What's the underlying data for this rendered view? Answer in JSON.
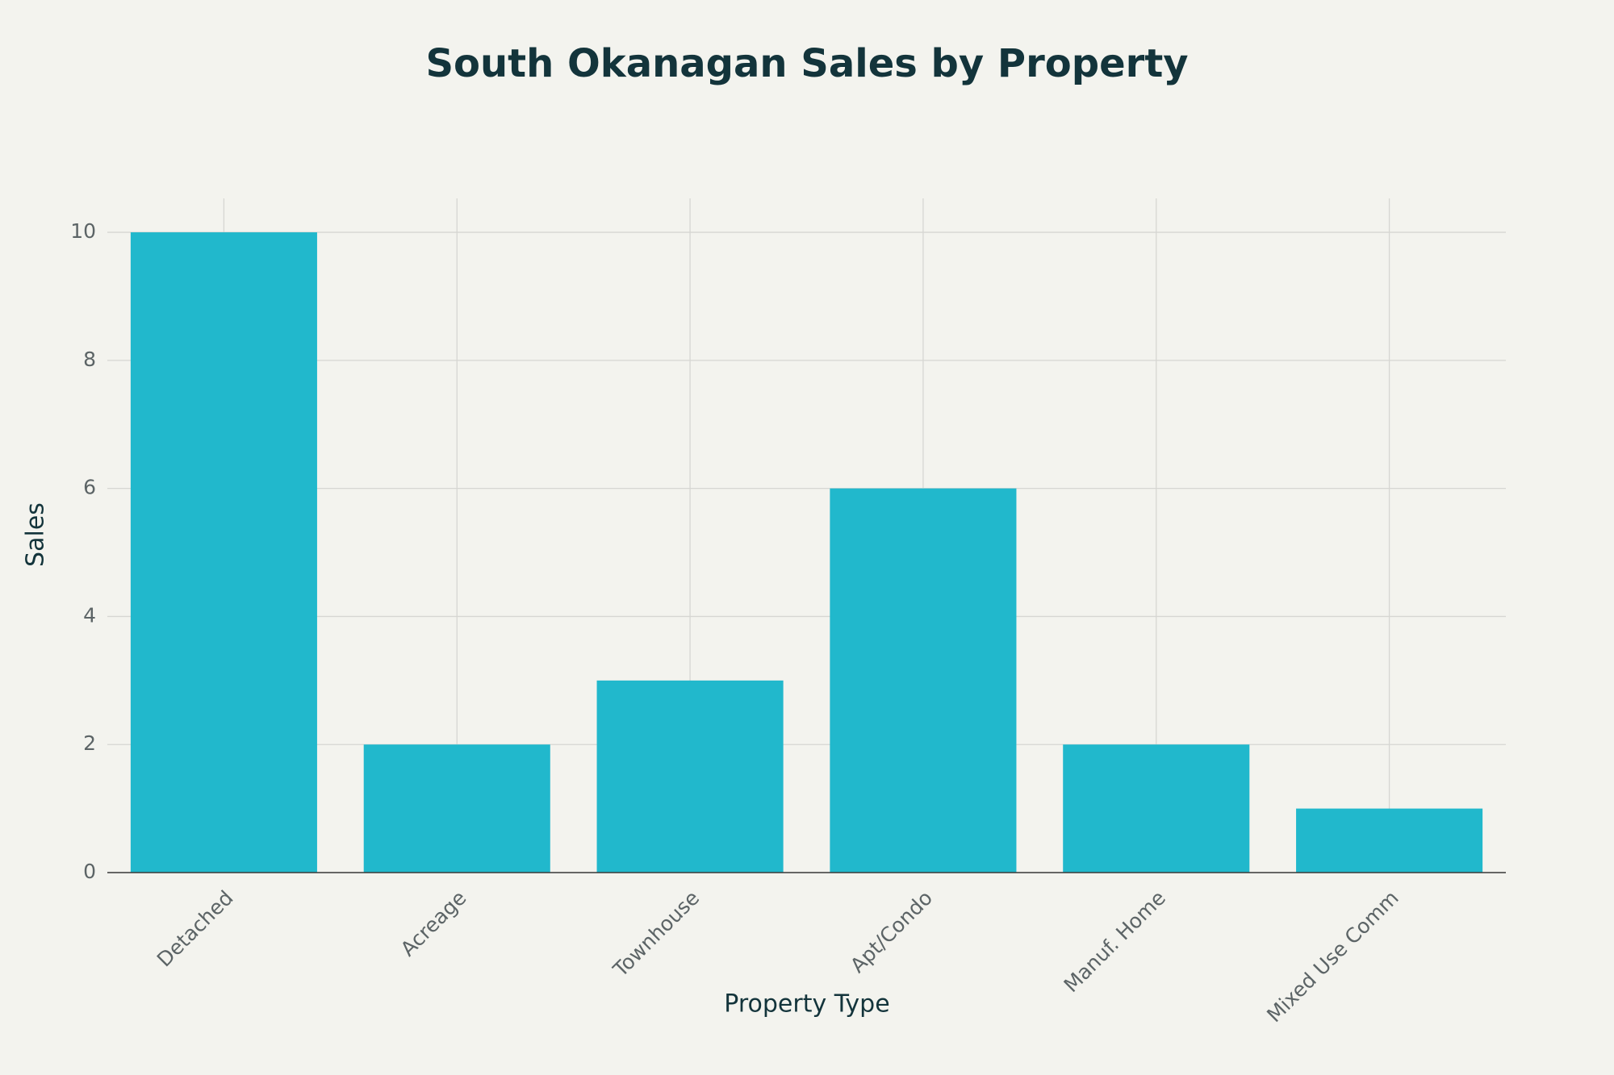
{
  "chart_data": {
    "type": "bar",
    "title": "South Okanagan Sales by Property",
    "x_label": "Property Type",
    "y_label": "Sales",
    "categories": [
      "Detached",
      "Acreage",
      "Townhouse",
      "Apt/Condo",
      "Manuf. Home",
      "Mixed Use Comm"
    ],
    "values": [
      10,
      2,
      3,
      6,
      2,
      1
    ],
    "color": "#21b8cc",
    "ylim": [
      0,
      10.53
    ],
    "yticks": [
      0,
      2,
      4,
      6,
      8,
      10
    ],
    "grid": true
  }
}
